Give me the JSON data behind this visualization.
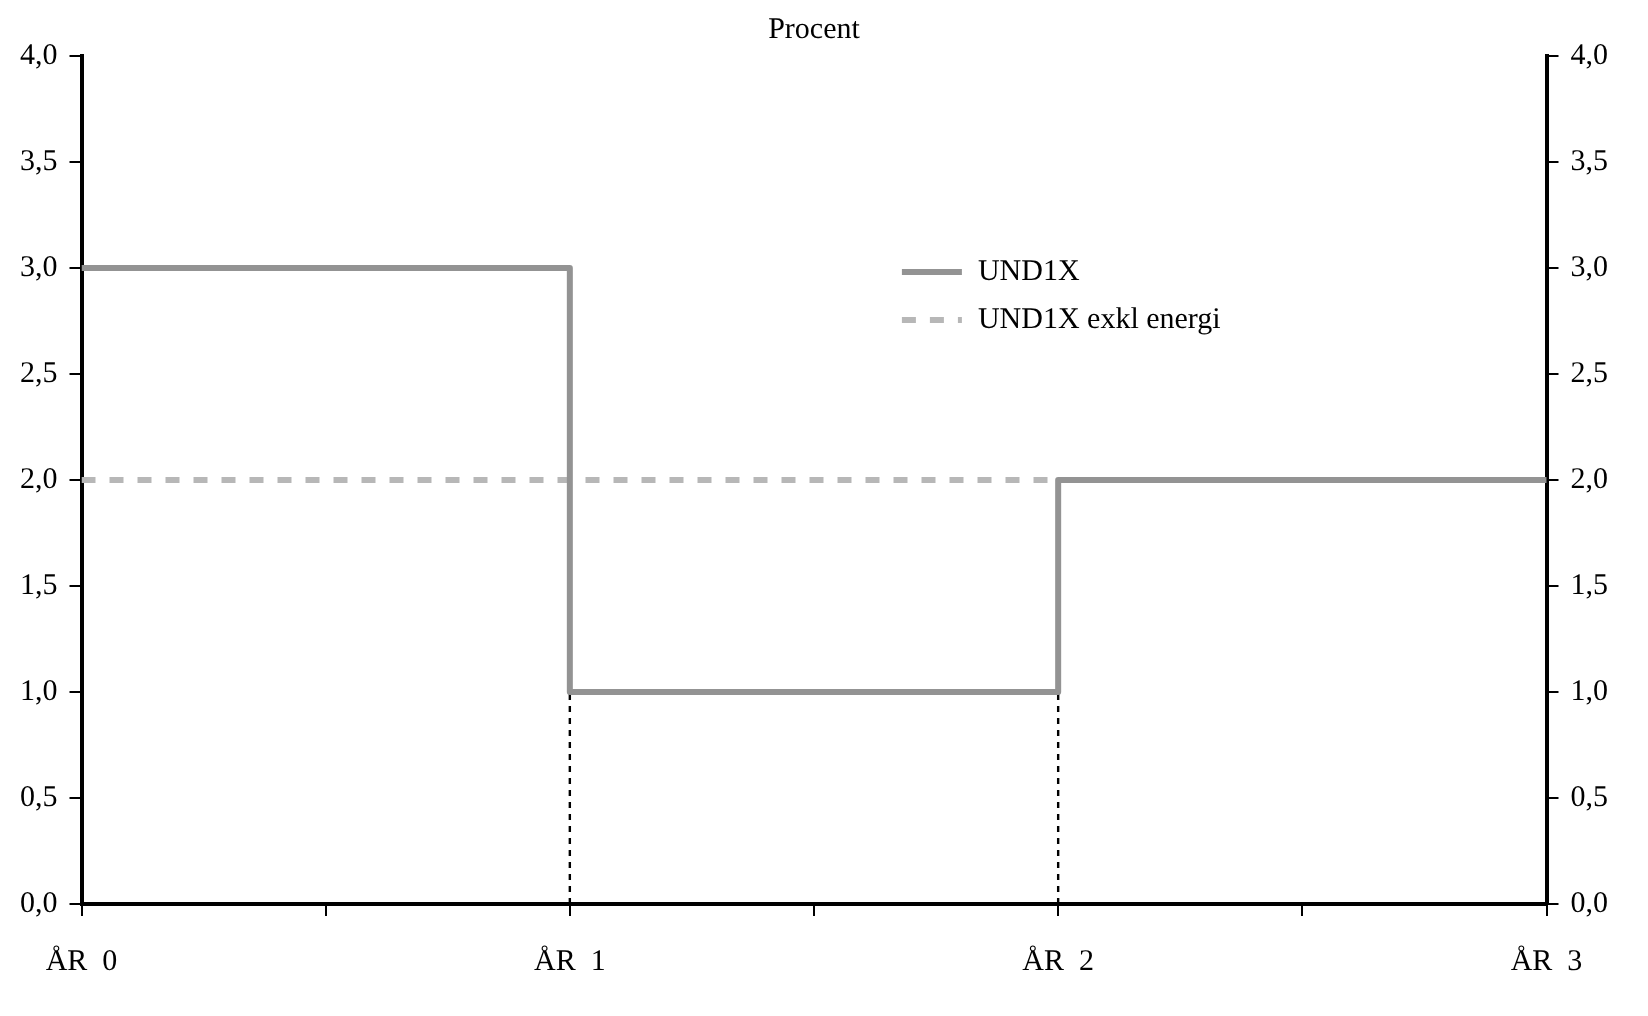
{
  "chart_data": {
    "type": "step",
    "title": "Procent",
    "categories": [
      "ÅR  0",
      null,
      "ÅR  1",
      null,
      "ÅR  2",
      null,
      "ÅR  3"
    ],
    "series": [
      {
        "name": "UND1X",
        "color": "#939393",
        "line_style": "solid",
        "values": [
          3,
          3,
          1,
          1,
          2,
          2,
          2
        ]
      },
      {
        "name": "UND1X exkl energi",
        "color": "#b7b7b7",
        "line_style": "dashed",
        "values": [
          2,
          2,
          2,
          2,
          2,
          2,
          2
        ]
      },
      {
        "type": "line",
        "color": "#000000",
        "line_style": "dotted",
        "x": [
          "ÅR  1",
          "ÅR  1"
        ],
        "values": [
          0,
          1
        ]
      },
      {
        "type": "line",
        "color": "#000000",
        "line_style": "dotted",
        "x": [
          "ÅR  2",
          "ÅR  2"
        ],
        "values": [
          0,
          1
        ]
      }
    ],
    "ylim": [
      0,
      4
    ],
    "yticks": [
      {
        "value": 0,
        "label": "0,0"
      },
      {
        "value": 0.5,
        "label": "0,5"
      },
      {
        "value": 1,
        "label": "1,0"
      },
      {
        "value": 1.5,
        "label": "1,5"
      },
      {
        "value": 2,
        "label": "2,0"
      },
      {
        "value": 2.5,
        "label": "2,5"
      },
      {
        "value": 3,
        "label": "3,0"
      },
      {
        "value": 3.5,
        "label": "3,5"
      },
      {
        "value": 4,
        "label": "4,0"
      }
    ],
    "y2lim": [
      0,
      4
    ],
    "y2ticks": [
      {
        "value": 0,
        "label": "0,0"
      },
      {
        "value": 0.5,
        "label": "0,5"
      },
      {
        "value": 1,
        "label": "1,0"
      },
      {
        "value": 1.5,
        "label": "1,5"
      },
      {
        "value": 2,
        "label": "2,0"
      },
      {
        "value": 2.5,
        "label": "2,5"
      },
      {
        "value": 3,
        "label": "3,0"
      },
      {
        "value": 3.5,
        "label": "3,5"
      },
      {
        "value": 4,
        "label": "4,0"
      }
    ],
    "grid": false,
    "legend": "top right",
    "marker": "none"
  }
}
